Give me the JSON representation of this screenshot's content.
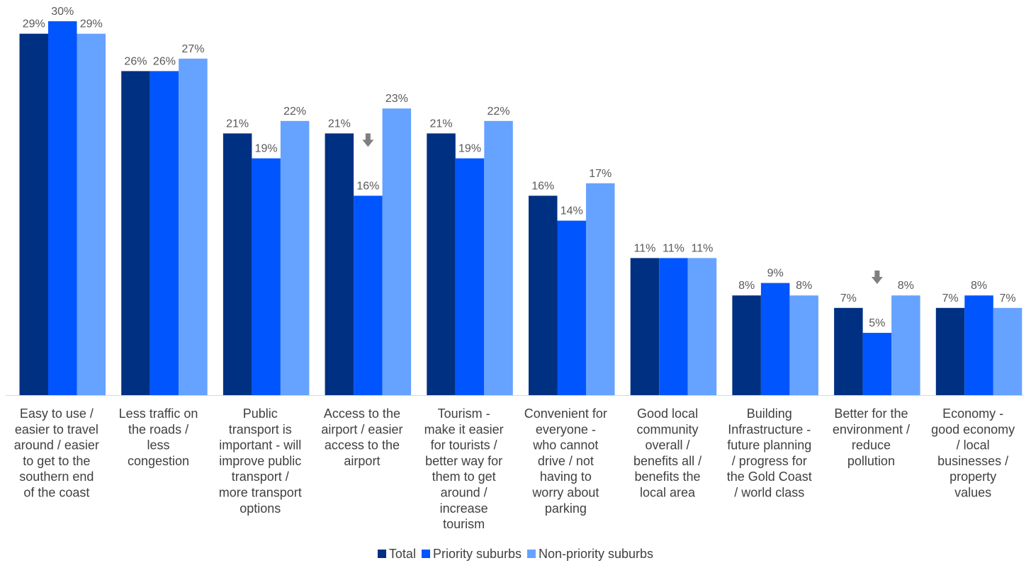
{
  "chart_data": {
    "type": "bar",
    "categories": [
      [
        "Easy to use /",
        "easier to travel",
        "around / easier",
        "to get to the",
        "southern end",
        "of the coast"
      ],
      [
        "Less traffic on",
        "the roads /",
        "less",
        "congestion"
      ],
      [
        "Public",
        "transport is",
        "important - will",
        "improve public",
        "transport /",
        "more transport",
        "options"
      ],
      [
        "Access to the",
        "airport / easier",
        "access to the",
        "airport"
      ],
      [
        "Tourism -",
        "make it easier",
        "for tourists  /",
        "better way for",
        "them to get",
        "around /",
        "increase",
        "tourism"
      ],
      [
        "Convenient for",
        "everyone -",
        "who cannot",
        "drive  / not",
        "having to",
        "worry about",
        "parking"
      ],
      [
        "Good local",
        "community",
        "overall /",
        "benefits all /",
        "benefits the",
        "local area"
      ],
      [
        "Building",
        "Infrastructure -",
        "future planning",
        "/ progress for",
        "the Gold Coast",
        "/ world class"
      ],
      [
        "Better for the",
        "environment /",
        "reduce",
        "pollution"
      ],
      [
        "Economy -",
        "good economy",
        "/ local",
        "businesses /",
        "property",
        "values"
      ]
    ],
    "series": [
      {
        "name": "Total",
        "color": "#003082",
        "values": [
          29,
          26,
          21,
          21,
          21,
          16,
          11,
          8,
          7,
          7
        ],
        "labels": [
          "29%",
          "26%",
          "21%",
          "21%",
          "21%",
          "16%",
          "11%",
          "8%",
          "7%",
          "7%"
        ]
      },
      {
        "name": "Priority suburbs",
        "color": "#0055FF",
        "values": [
          30,
          26,
          19,
          16,
          19,
          14,
          11,
          9,
          5,
          8
        ],
        "labels": [
          "30%",
          "26%",
          "19%",
          "16%",
          "19%",
          "14%",
          "11%",
          "9%",
          "5%",
          "8%"
        ]
      },
      {
        "name": "Non-priority suburbs",
        "color": "#66A2FF",
        "values": [
          29,
          27,
          22,
          23,
          22,
          17,
          11,
          8,
          8,
          7
        ],
        "labels": [
          "29%",
          "27%",
          "22%",
          "23%",
          "22%",
          "17%",
          "11%",
          "8%",
          "8%",
          "7%"
        ]
      }
    ],
    "down_arrow_markers": [
      {
        "category_index": 3,
        "series": "Priority suburbs"
      },
      {
        "category_index": 8,
        "series": "Priority suburbs"
      }
    ],
    "arrow_color": "#7F7F7F",
    "ylim": [
      0,
      30
    ],
    "grid": false,
    "legend_position": "bottom"
  }
}
